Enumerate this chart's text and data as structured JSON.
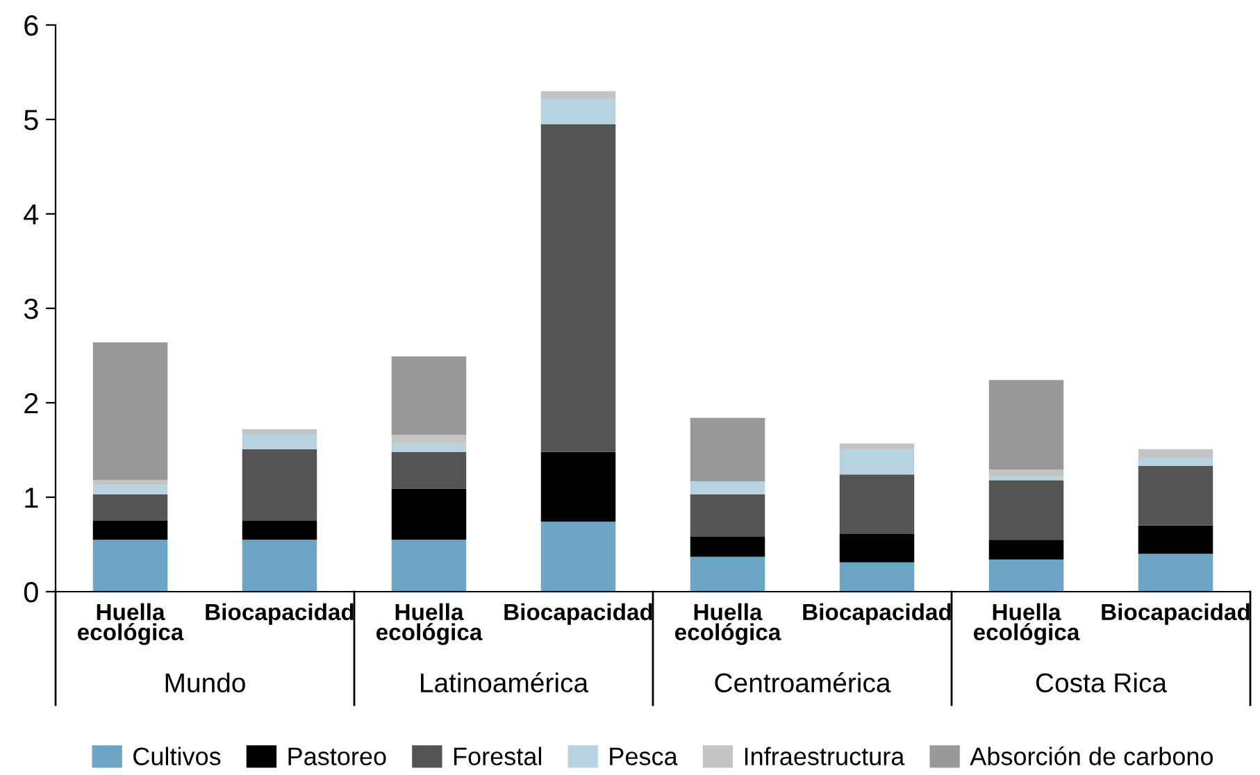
{
  "chart_data": {
    "type": "bar",
    "stacked": true,
    "categories": [
      "Huella\necológica",
      "Biocapacidad",
      "Huella\necológica",
      "Biocapacidad",
      "Huella\necológica",
      "Biocapacidad",
      "Huella\necológica",
      "Biocapacidad"
    ],
    "series": [
      {
        "name": "Cultivos",
        "color": "#6fa5c4",
        "values": [
          0.55,
          0.55,
          0.55,
          0.74,
          0.37,
          0.31,
          0.34,
          0.4
        ]
      },
      {
        "name": "Pastoreo",
        "color": "#000000",
        "values": [
          0.2,
          0.2,
          0.54,
          0.74,
          0.21,
          0.3,
          0.21,
          0.3
        ]
      },
      {
        "name": "Forestal",
        "color": "#545454",
        "values": [
          0.28,
          0.76,
          0.39,
          3.47,
          0.45,
          0.63,
          0.63,
          0.63
        ]
      },
      {
        "name": "Pesca",
        "color": "#b7d3e0",
        "values": [
          0.1,
          0.16,
          0.09,
          0.27,
          0.14,
          0.27,
          0.04,
          0.09
        ]
      },
      {
        "name": "Infraestructura",
        "color": "#c4c4c4",
        "values": [
          0.05,
          0.05,
          0.09,
          0.08,
          null,
          0.06,
          0.07,
          0.09
        ]
      },
      {
        "name": "Absorción de carbono",
        "color": "#999999",
        "values": [
          1.46,
          null,
          0.83,
          null,
          0.67,
          null,
          0.95,
          null
        ]
      }
    ],
    "annotations": [
      "Mundo",
      "Latinoamérica",
      "Centroamérica",
      "Costa Rica"
    ],
    "ylim": [
      0,
      6
    ],
    "yticks": [
      0,
      1,
      2,
      3,
      4,
      5,
      6
    ],
    "grid": false,
    "legend": "bottom"
  }
}
